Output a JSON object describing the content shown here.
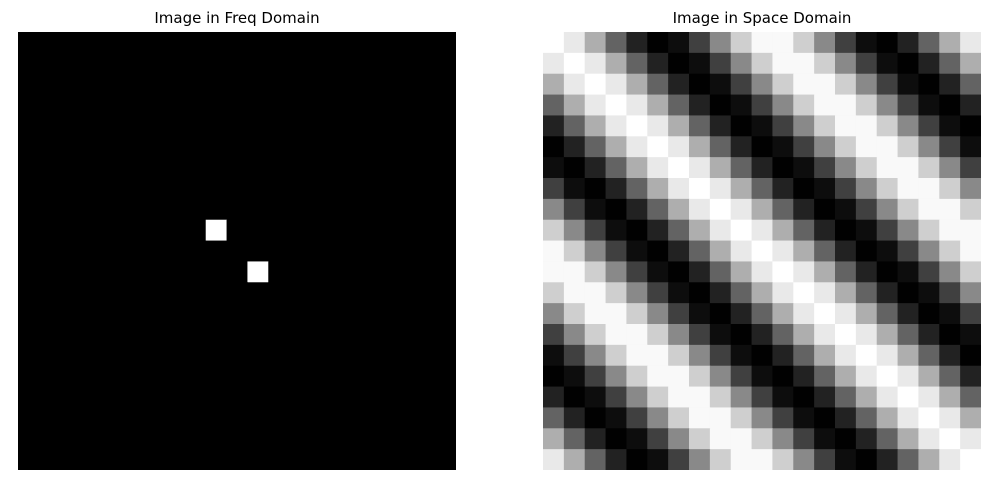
{
  "chart_data": [
    {
      "type": "heatmap",
      "title": "Image in Freq Domain",
      "grid_size": 21,
      "colormap": "gray",
      "value_range": [
        0,
        1
      ],
      "grid": false,
      "axes": false,
      "background_value": 0,
      "bright_cells": [
        {
          "row": 9,
          "col": 9,
          "value": 1
        },
        {
          "row": 11,
          "col": 11,
          "value": 1
        }
      ]
    },
    {
      "type": "heatmap",
      "title": "Image in Space Domain",
      "grid_size": 21,
      "colormap": "gray",
      "value_range": [
        0,
        1
      ],
      "grid": false,
      "axes": false,
      "pattern": "diagonal sinusoidal stripes",
      "frequency": {
        "u": 2,
        "v": -2
      }
    }
  ]
}
